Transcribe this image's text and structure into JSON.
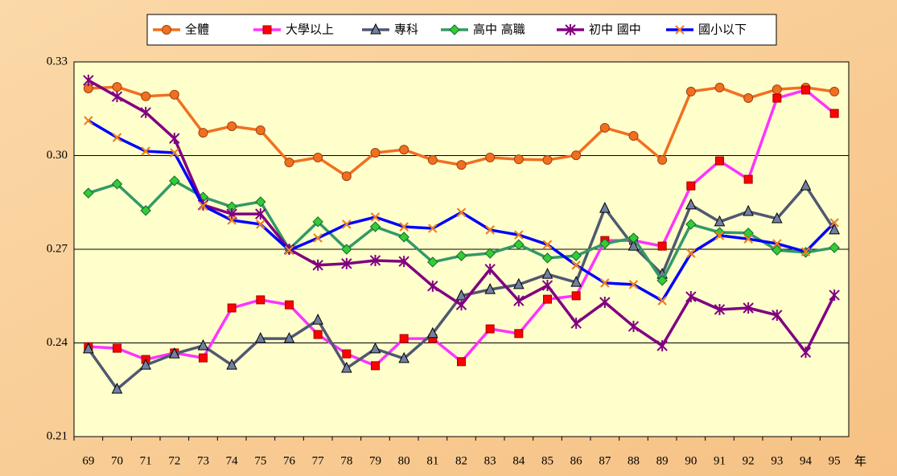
{
  "chart_data": {
    "type": "line",
    "xlabel": "年",
    "categories": [
      "69",
      "70",
      "71",
      "72",
      "73",
      "74",
      "75",
      "76",
      "77",
      "78",
      "79",
      "80",
      "81",
      "82",
      "83",
      "84",
      "85",
      "86",
      "87",
      "88",
      "89",
      "90",
      "91",
      "92",
      "93",
      "94",
      "95"
    ],
    "ylim": [
      0.21,
      0.33
    ],
    "yticks": [
      0.21,
      0.24,
      0.27,
      {
        "value": 0.3,
        "label": "0.30"
      },
      0.33
    ],
    "grid": true,
    "legend": "top",
    "series": [
      {
        "name": "全體",
        "color": "#f07020",
        "marker": "circle",
        "marker_color": "#f07020",
        "values": [
          0.3215,
          0.322,
          0.319,
          0.3195,
          0.3073,
          0.3094,
          0.3081,
          0.2978,
          0.2994,
          0.2934,
          0.3009,
          0.3019,
          0.2986,
          0.297,
          0.2994,
          0.2988,
          0.2986,
          0.3001,
          0.3089,
          0.3063,
          0.2986,
          0.3205,
          0.3218,
          0.3184,
          0.3212,
          0.3218,
          0.3205
        ]
      },
      {
        "name": "大學以上",
        "color": "#ff33ff",
        "marker": "square",
        "marker_color": "#ff0000",
        "values": [
          0.2388,
          0.2383,
          0.2347,
          0.2368,
          0.2352,
          0.2512,
          0.2538,
          0.2522,
          0.2427,
          0.2365,
          0.2327,
          0.2414,
          0.2414,
          0.234,
          0.2445,
          0.243,
          0.254,
          0.2551,
          0.2728,
          0.2728,
          0.271,
          0.2903,
          0.2983,
          0.2924,
          0.3184,
          0.321,
          0.3135
        ]
      },
      {
        "name": "專科",
        "color": "#505870",
        "marker": "triangle",
        "marker_color": "#7080a0",
        "values": [
          0.2381,
          0.2252,
          0.2329,
          0.2365,
          0.2391,
          0.2329,
          0.2414,
          0.2414,
          0.2473,
          0.2319,
          0.2381,
          0.235,
          0.243,
          0.2551,
          0.2571,
          0.2587,
          0.262,
          0.2594,
          0.2831,
          0.271,
          0.262,
          0.2842,
          0.2788,
          0.2821,
          0.2798,
          0.2903,
          0.2762
        ]
      },
      {
        "name": "高中 高職",
        "color": "#339966",
        "marker": "diamond",
        "marker_color": "#33cc33",
        "values": [
          0.288,
          0.2909,
          0.2824,
          0.2919,
          0.2867,
          0.2836,
          0.2852,
          0.27,
          0.2788,
          0.27,
          0.2772,
          0.2739,
          0.2659,
          0.2679,
          0.2687,
          0.2715,
          0.2672,
          0.2679,
          0.2718,
          0.2736,
          0.26,
          0.278,
          0.2754,
          0.2752,
          0.2697,
          0.269,
          0.2705
        ]
      },
      {
        "name": "初中 國中",
        "color": "#800080",
        "marker": "star",
        "marker_color": "#800080",
        "values": [
          0.3241,
          0.3189,
          0.3138,
          0.3055,
          0.2842,
          0.2813,
          0.2813,
          0.27,
          0.2649,
          0.2654,
          0.2664,
          0.2661,
          0.2582,
          0.2522,
          0.2636,
          0.2535,
          0.2584,
          0.2463,
          0.253,
          0.2453,
          0.2391,
          0.2548,
          0.2507,
          0.2512,
          0.2489,
          0.237,
          0.2553
        ]
      },
      {
        "name": "國小以下",
        "color": "#0000ff",
        "marker": "x",
        "marker_color": "#f08020",
        "values": [
          0.3112,
          0.3058,
          0.3014,
          0.3009,
          0.2839,
          0.2793,
          0.278,
          0.2697,
          0.2736,
          0.278,
          0.2803,
          0.2772,
          0.2767,
          0.2818,
          0.2762,
          0.2746,
          0.2715,
          0.2649,
          0.2592,
          0.2587,
          0.2535,
          0.2687,
          0.2744,
          0.2733,
          0.2718,
          0.2692,
          0.2785
        ]
      }
    ]
  }
}
